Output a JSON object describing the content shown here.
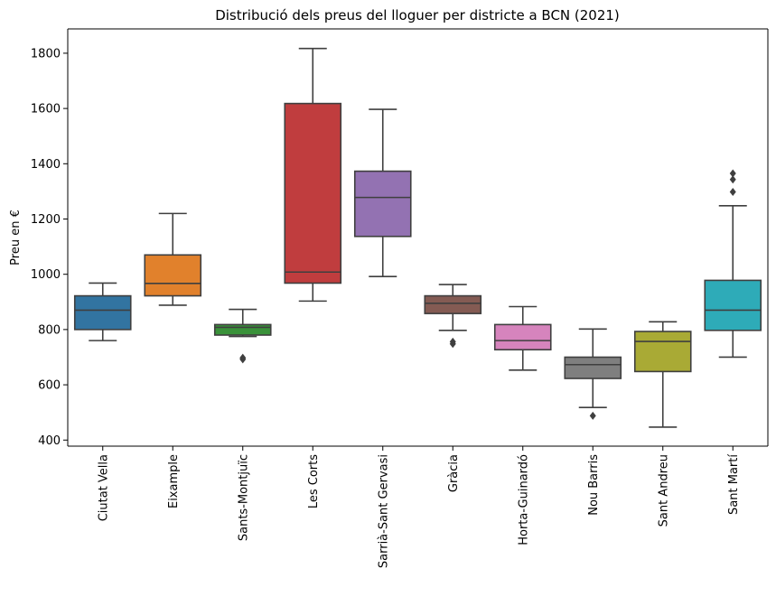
{
  "chart_data": {
    "type": "box",
    "title": "Distribució dels preus del lloguer per districte a BCN (2021)",
    "xlabel": "",
    "ylabel": "Preu en €",
    "ylim": [
      378,
      1888
    ],
    "yticks": [
      400,
      600,
      800,
      1000,
      1200,
      1400,
      1600,
      1800
    ],
    "grid": false,
    "categories": [
      "Ciutat Vella",
      "Eixample",
      "Sants-Montjuïc",
      "Les Corts",
      "Sarrià-Sant Gervasi",
      "Gràcia",
      "Horta-Guinardó",
      "Nou Barris",
      "Sant Andreu",
      "Sant Martí"
    ],
    "boxes": [
      {
        "category": "Ciutat Vella",
        "color": "#3274a1",
        "whisker_low": 760,
        "q1": 800,
        "median": 870,
        "q3": 922,
        "whisker_high": 968,
        "outliers": []
      },
      {
        "category": "Eixample",
        "color": "#e1812c",
        "whisker_low": 888,
        "q1": 922,
        "median": 967,
        "q3": 1070,
        "whisker_high": 1220,
        "outliers": []
      },
      {
        "category": "Sants-Montjuïc",
        "color": "#3a923a",
        "whisker_low": 775,
        "q1": 780,
        "median": 808,
        "q3": 818,
        "whisker_high": 873,
        "outliers": [
          692,
          698
        ]
      },
      {
        "category": "Les Corts",
        "color": "#c03d3e",
        "whisker_low": 903,
        "q1": 968,
        "median": 1008,
        "q3": 1618,
        "whisker_high": 1817,
        "outliers": []
      },
      {
        "category": "Sarrià-Sant Gervasi",
        "color": "#9372b2",
        "whisker_low": 992,
        "q1": 1137,
        "median": 1278,
        "q3": 1373,
        "whisker_high": 1597,
        "outliers": []
      },
      {
        "category": "Gràcia",
        "color": "#845b53",
        "whisker_low": 797,
        "q1": 858,
        "median": 895,
        "q3": 922,
        "whisker_high": 963,
        "outliers": [
          748,
          756
        ]
      },
      {
        "category": "Horta-Guinardó",
        "color": "#d684bd",
        "whisker_low": 653,
        "q1": 727,
        "median": 760,
        "q3": 818,
        "whisker_high": 883,
        "outliers": []
      },
      {
        "category": "Nou Barris",
        "color": "#7f7f7f",
        "whisker_low": 518,
        "q1": 623,
        "median": 673,
        "q3": 700,
        "whisker_high": 802,
        "outliers": [
          488
        ]
      },
      {
        "category": "Sant Andreu",
        "color": "#a9aa35",
        "whisker_low": 447,
        "q1": 648,
        "median": 757,
        "q3": 793,
        "whisker_high": 828,
        "outliers": []
      },
      {
        "category": "Sant Martí",
        "color": "#2eabb8",
        "whisker_low": 700,
        "q1": 797,
        "median": 870,
        "q3": 978,
        "whisker_high": 1248,
        "outliers": [
          1298,
          1343,
          1365
        ]
      }
    ]
  }
}
